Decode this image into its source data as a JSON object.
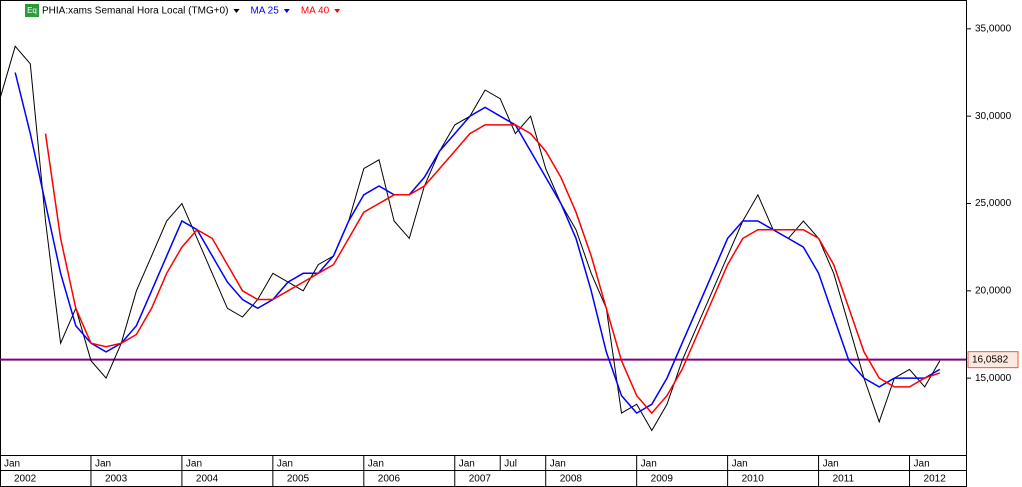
{
  "chart_data": {
    "type": "line",
    "badge": "Eq",
    "x": [
      "2002-01",
      "2002-03",
      "2002-05",
      "2002-07",
      "2002-09",
      "2002-11",
      "2003-01",
      "2003-03",
      "2003-05",
      "2003-07",
      "2003-09",
      "2003-11",
      "2004-01",
      "2004-03",
      "2004-05",
      "2004-07",
      "2004-09",
      "2004-11",
      "2005-01",
      "2005-03",
      "2005-05",
      "2005-07",
      "2005-09",
      "2005-11",
      "2006-01",
      "2006-03",
      "2006-05",
      "2006-07",
      "2006-09",
      "2006-11",
      "2007-01",
      "2007-03",
      "2007-05",
      "2007-07",
      "2007-09",
      "2007-11",
      "2008-01",
      "2008-03",
      "2008-05",
      "2008-07",
      "2008-09",
      "2008-11",
      "2009-01",
      "2009-03",
      "2009-05",
      "2009-07",
      "2009-09",
      "2009-11",
      "2010-01",
      "2010-03",
      "2010-05",
      "2010-07",
      "2010-09",
      "2010-11",
      "2011-01",
      "2011-03",
      "2011-05",
      "2011-07",
      "2011-09",
      "2011-11",
      "2012-01",
      "2012-03",
      "2012-05"
    ],
    "series": [
      {
        "name": "PHIA:xams Semanal Hora Local (TMG+0)",
        "color": "#000000",
        "values": [
          31,
          34,
          33,
          24,
          17,
          19,
          16,
          15,
          17,
          20,
          22,
          24,
          25,
          23,
          21,
          19,
          18.5,
          19.5,
          21,
          20.5,
          20,
          21.5,
          22,
          24,
          27,
          27.5,
          24,
          23,
          26,
          28,
          29.5,
          30,
          31.5,
          31,
          29,
          30,
          27,
          25,
          23.5,
          21,
          19,
          13,
          13.5,
          12,
          13.5,
          16,
          18,
          20,
          22,
          24,
          25.5,
          23.5,
          23,
          24,
          23,
          21,
          18,
          15,
          12.5,
          15,
          15.5,
          14.5,
          16
        ]
      },
      {
        "name": "MA 25",
        "color": "#0000ff",
        "values": [
          null,
          32.5,
          29,
          25,
          21,
          18,
          17,
          16.5,
          17,
          18,
          20,
          22,
          24,
          23.5,
          22,
          20.5,
          19.5,
          19,
          19.5,
          20.5,
          21,
          21,
          22,
          24,
          25.5,
          26,
          25.5,
          25.5,
          26.5,
          28,
          29,
          30,
          30.5,
          30,
          29.5,
          28,
          26.5,
          25,
          23,
          20,
          16.5,
          14,
          13,
          13.5,
          15,
          17,
          19,
          21,
          23,
          24,
          24,
          23.5,
          23,
          22.5,
          21,
          18.5,
          16,
          15,
          14.5,
          15,
          15,
          15,
          15.5
        ]
      },
      {
        "name": "MA 40",
        "color": "#ff0000",
        "values": [
          null,
          null,
          null,
          29,
          23,
          19,
          17,
          16.8,
          17,
          17.5,
          19,
          21,
          22.5,
          23.5,
          23,
          21.5,
          20,
          19.5,
          19.5,
          20,
          20.5,
          21,
          21.5,
          23,
          24.5,
          25,
          25.5,
          25.5,
          26,
          27,
          28,
          29,
          29.5,
          29.5,
          29.5,
          29,
          28,
          26.5,
          24.5,
          22,
          19,
          16,
          14,
          13,
          14,
          15.5,
          17.5,
          19.5,
          21.5,
          23,
          23.5,
          23.5,
          23.5,
          23.5,
          23,
          21.5,
          19,
          16.5,
          15,
          14.5,
          14.5,
          15,
          15.3
        ]
      }
    ],
    "xlim": [
      "2002-01",
      "2012-07"
    ],
    "ylim": [
      10.6,
      36.65
    ],
    "yticks": [
      {
        "value": 15,
        "label": "15,0000"
      },
      {
        "value": 20,
        "label": "20,0000"
      },
      {
        "value": 25,
        "label": "25,0000"
      },
      {
        "value": 30,
        "label": "30,0000"
      },
      {
        "value": 35,
        "label": "35,0000"
      }
    ],
    "xticks": [
      {
        "value": "2002-01",
        "label": "Jan"
      },
      {
        "value": "2003-01",
        "label": "Jan"
      },
      {
        "value": "2004-01",
        "label": "Jan"
      },
      {
        "value": "2005-01",
        "label": "Jan"
      },
      {
        "value": "2006-01",
        "label": "Jan"
      },
      {
        "value": "2007-01",
        "label": "Jan"
      },
      {
        "value": "2007-07",
        "label": "Jul"
      },
      {
        "value": "2008-01",
        "label": "Jan"
      },
      {
        "value": "2009-01",
        "label": "Jan"
      },
      {
        "value": "2010-01",
        "label": "Jan"
      },
      {
        "value": "2011-01",
        "label": "Jan"
      },
      {
        "value": "2012-01",
        "label": "Jan"
      }
    ],
    "years": [
      "2002",
      "2003",
      "2004",
      "2005",
      "2006",
      "2007",
      "2008",
      "2009",
      "2010",
      "2011",
      "2012"
    ],
    "reference_line": {
      "value": 16.0582,
      "label": "16,0582",
      "color": "#800080"
    }
  }
}
